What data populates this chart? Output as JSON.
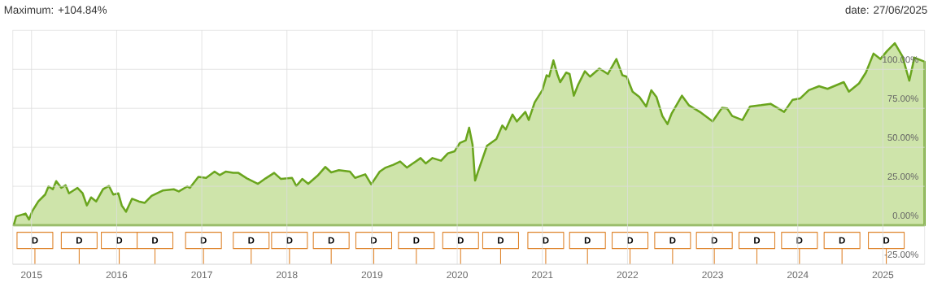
{
  "chart_data": {
    "type": "area",
    "title": "Maximum: +104.84%",
    "subtitle": "date: 27/06/2025",
    "x": [
      2014.79,
      2014.82,
      2014.93,
      2014.97,
      2015.01,
      2015.08,
      2015.16,
      2015.2,
      2015.25,
      2015.29,
      2015.35,
      2015.4,
      2015.44,
      2015.54,
      2015.6,
      2015.65,
      2015.7,
      2015.76,
      2015.84,
      2015.91,
      2015.96,
      2016.02,
      2016.06,
      2016.11,
      2016.18,
      2016.26,
      2016.33,
      2016.41,
      2016.54,
      2016.67,
      2016.73,
      2016.83,
      2016.86,
      2016.96,
      2017.05,
      2017.15,
      2017.21,
      2017.28,
      2017.37,
      2017.43,
      2017.53,
      2017.66,
      2017.75,
      2017.85,
      2017.93,
      2018.06,
      2018.11,
      2018.18,
      2018.25,
      2018.36,
      2018.45,
      2018.52,
      2018.61,
      2018.74,
      2018.8,
      2018.92,
      2018.99,
      2019.09,
      2019.16,
      2019.25,
      2019.33,
      2019.41,
      2019.57,
      2019.63,
      2019.71,
      2019.81,
      2019.89,
      2019.97,
      2020.03,
      2020.1,
      2020.14,
      2020.18,
      2020.21,
      2020.25,
      2020.35,
      2020.46,
      2020.53,
      2020.57,
      2020.65,
      2020.7,
      2020.8,
      2020.84,
      2020.91,
      2021.0,
      2021.05,
      2021.08,
      2021.13,
      2021.18,
      2021.21,
      2021.28,
      2021.32,
      2021.37,
      2021.42,
      2021.5,
      2021.56,
      2021.67,
      2021.77,
      2021.87,
      2021.94,
      2021.99,
      2022.06,
      2022.14,
      2022.22,
      2022.28,
      2022.34,
      2022.41,
      2022.47,
      2022.52,
      2022.64,
      2022.72,
      2022.85,
      2023.0,
      2023.11,
      2023.17,
      2023.23,
      2023.35,
      2023.44,
      2023.57,
      2023.68,
      2023.84,
      2023.94,
      2024.03,
      2024.13,
      2024.25,
      2024.35,
      2024.54,
      2024.6,
      2024.72,
      2024.8,
      2024.89,
      2024.97,
      2025.05,
      2025.14,
      2025.23,
      2025.31,
      2025.37,
      2025.49
    ],
    "series": [
      {
        "color": "#6aa51e",
        "values": [
          0,
          5.7,
          7.5,
          3.7,
          9.2,
          15.3,
          19.7,
          24.9,
          23.1,
          28.3,
          24,
          25.7,
          20.5,
          24,
          20.5,
          12.7,
          17.9,
          15.3,
          23.1,
          25.2,
          19.7,
          20.5,
          12.7,
          8.7,
          17,
          15.3,
          14.4,
          18.8,
          22.3,
          23.1,
          21.7,
          24.9,
          24,
          31,
          30.4,
          34.4,
          32.2,
          34.4,
          33.6,
          33.6,
          30.1,
          26.6,
          30.1,
          33.6,
          29.7,
          30.4,
          25.2,
          29.7,
          26.6,
          31.8,
          37.4,
          33.9,
          35.3,
          34.4,
          30.4,
          32.7,
          26.3,
          34.4,
          37,
          38.8,
          40.9,
          37,
          43.1,
          39.7,
          43.1,
          41.4,
          46.1,
          47.5,
          52.7,
          54.4,
          62.6,
          51.8,
          28.7,
          35.3,
          51,
          55.3,
          64,
          61.4,
          71,
          66.6,
          72.7,
          67.5,
          78.8,
          86.6,
          96.2,
          95.3,
          105.7,
          96.2,
          91.8,
          97.9,
          97,
          83.1,
          90.1,
          98.8,
          95.3,
          100.5,
          97,
          106.6,
          96.2,
          95.3,
          85.7,
          82.3,
          76.2,
          86.6,
          82.3,
          70.1,
          64.9,
          71.8,
          83.1,
          77,
          72.7,
          66.6,
          75.3,
          75,
          70.1,
          67.5,
          76.2,
          77,
          77.9,
          72.7,
          80.5,
          81.4,
          86.6,
          89.2,
          87.5,
          91.8,
          85.7,
          91,
          97.9,
          110.1,
          106.6,
          111.8,
          116.7,
          108.3,
          92.7,
          107.5,
          104.9
        ]
      }
    ],
    "xlim": [
      2014.78,
      2025.49
    ],
    "ylim": [
      -25,
      125
    ],
    "xticks": [
      2015,
      2016,
      2017,
      2018,
      2019,
      2020,
      2021,
      2022,
      2023,
      2024,
      2025
    ],
    "yticks": [
      {
        "value": -25,
        "label": "-25.00%"
      },
      {
        "value": 0,
        "label": "0.00%"
      },
      {
        "value": 25,
        "label": "25.00%"
      },
      {
        "value": 50,
        "label": "50.00%"
      },
      {
        "value": 75,
        "label": "75.00%"
      },
      {
        "value": 100,
        "label": "100.00%"
      }
    ],
    "grid": true,
    "ref_lines": [
      {
        "axis": "x",
        "value": 2015.04,
        "label": "D"
      },
      {
        "axis": "x",
        "value": 2015.56,
        "label": "D"
      },
      {
        "axis": "x",
        "value": 2016.03,
        "label": "D"
      },
      {
        "axis": "x",
        "value": 2016.45,
        "label": "D"
      },
      {
        "axis": "x",
        "value": 2017.02,
        "label": "D"
      },
      {
        "axis": "x",
        "value": 2017.58,
        "label": "D"
      },
      {
        "axis": "x",
        "value": 2018.03,
        "label": "D"
      },
      {
        "axis": "x",
        "value": 2018.52,
        "label": "D"
      },
      {
        "axis": "x",
        "value": 2019.02,
        "label": "D"
      },
      {
        "axis": "x",
        "value": 2019.52,
        "label": "D"
      },
      {
        "axis": "x",
        "value": 2020.04,
        "label": "D"
      },
      {
        "axis": "x",
        "value": 2020.51,
        "label": "D"
      },
      {
        "axis": "x",
        "value": 2021.04,
        "label": "D"
      },
      {
        "axis": "x",
        "value": 2021.53,
        "label": "D"
      },
      {
        "axis": "x",
        "value": 2022.03,
        "label": "D"
      },
      {
        "axis": "x",
        "value": 2022.53,
        "label": "D"
      },
      {
        "axis": "x",
        "value": 2023.02,
        "label": "D"
      },
      {
        "axis": "x",
        "value": 2023.52,
        "label": "D"
      },
      {
        "axis": "x",
        "value": 2024.02,
        "label": "D"
      },
      {
        "axis": "x",
        "value": 2024.52,
        "label": "D"
      },
      {
        "axis": "x",
        "value": 2025.04,
        "label": "D"
      }
    ]
  }
}
